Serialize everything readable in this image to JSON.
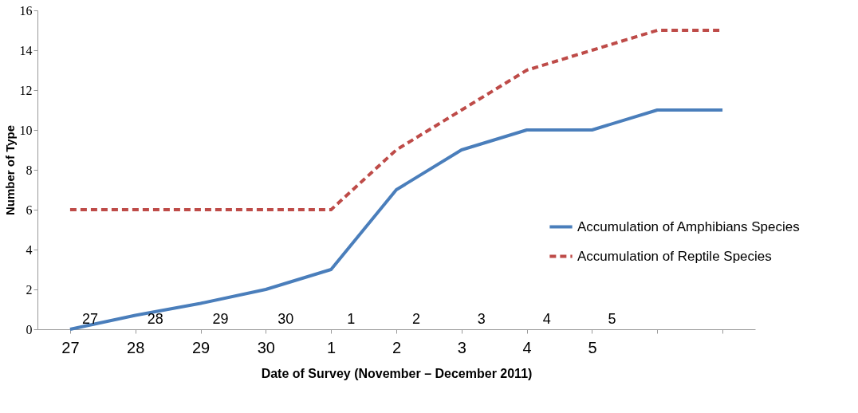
{
  "chart_data": {
    "type": "line",
    "xlabel": "Date of Survey (November – December 2011)",
    "ylabel": "Number of Type",
    "categories": [
      "27",
      "28",
      "29",
      "30",
      "1",
      "2",
      "3",
      "4",
      "5",
      null,
      null
    ],
    "series": [
      {
        "name": "Accumulation of Amphibians Species",
        "color": "#4a7ebb",
        "values": [
          0,
          0.7,
          1.3,
          2,
          3,
          7,
          9,
          10,
          10,
          11,
          11
        ],
        "line_style": "solid"
      },
      {
        "name": "Accumulation of Reptile Species",
        "color": "#be4b48",
        "values": [
          6,
          6,
          6,
          6,
          6,
          9,
          11,
          13,
          14,
          15,
          15
        ],
        "line_style": "dashed"
      }
    ],
    "annotations": [
      "27",
      "28",
      "29",
      "30",
      "1",
      "2",
      "3",
      "4",
      "5"
    ],
    "ylim": [
      0,
      16
    ],
    "yticks": [
      0,
      2,
      4,
      6,
      8,
      10,
      12,
      14,
      16
    ],
    "grid": false,
    "legend": "right",
    "marker": "none"
  }
}
